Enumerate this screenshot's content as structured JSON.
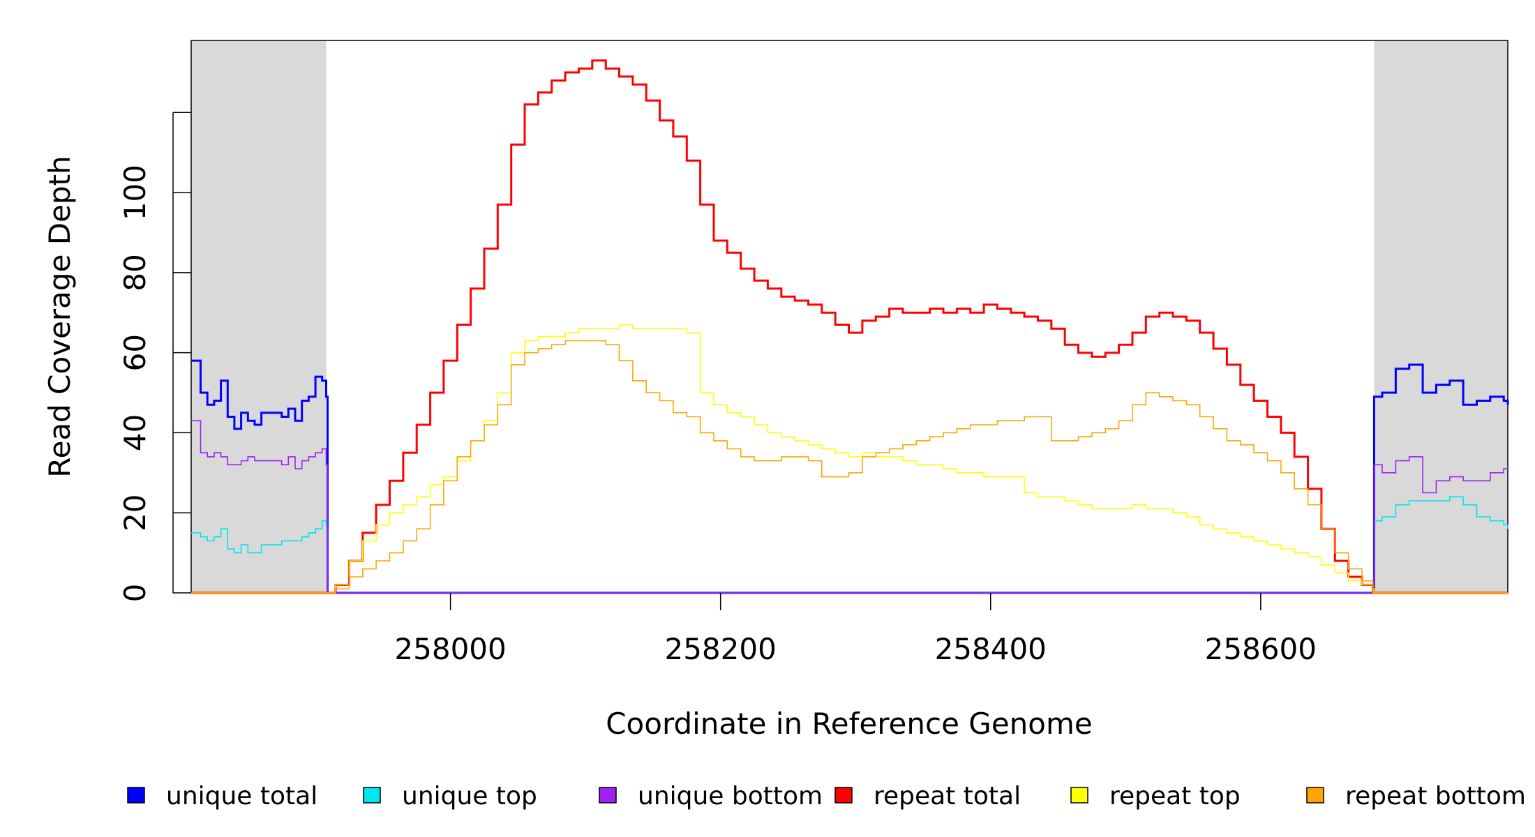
{
  "chart_data": {
    "type": "line",
    "title": "",
    "xlabel": "Coordinate in Reference Genome",
    "ylabel": "Read Coverage Depth",
    "xlim": [
      257808,
      258783
    ],
    "ylim": [
      0,
      138
    ],
    "xticks": [
      258000,
      258200,
      258400,
      258600
    ],
    "yticks": [
      0,
      20,
      40,
      60,
      80,
      100
    ],
    "grid": false,
    "legend_position": "bottom",
    "shaded_regions": [
      {
        "x": [
          257808,
          257908
        ],
        "color": "#d9d9d9"
      },
      {
        "x": [
          258684,
          258783
        ],
        "color": "#d9d9d9"
      }
    ],
    "series": [
      {
        "name": "unique total",
        "color": "#0000ff",
        "x": [
          257808,
          257815,
          257820,
          257825,
          257830,
          257835,
          257840,
          257845,
          257850,
          257855,
          257860,
          257865,
          257870,
          257875,
          257880,
          257885,
          257890,
          257895,
          257900,
          257905,
          257908,
          257909,
          258683,
          258684,
          258690,
          258700,
          258710,
          258720,
          258730,
          258740,
          258750,
          258760,
          258770,
          258780,
          258783
        ],
        "y": [
          58,
          50,
          47,
          48,
          53,
          44,
          41,
          45,
          43,
          42,
          45,
          45,
          45,
          44,
          46,
          43,
          48,
          49,
          54,
          53,
          49,
          0,
          0,
          49,
          50,
          56,
          57,
          50,
          52,
          53,
          47,
          48,
          49,
          48,
          47
        ]
      },
      {
        "name": "unique top",
        "color": "#00e5ee",
        "x": [
          257808,
          257815,
          257820,
          257825,
          257830,
          257835,
          257840,
          257845,
          257850,
          257855,
          257860,
          257865,
          257870,
          257875,
          257880,
          257885,
          257890,
          257895,
          257900,
          257905,
          257908,
          257909,
          258683,
          258684,
          258690,
          258700,
          258710,
          258720,
          258730,
          258740,
          258750,
          258760,
          258770,
          258780,
          258783
        ],
        "y": [
          15,
          14,
          13,
          14,
          16,
          11,
          10,
          12,
          10,
          10,
          12,
          12,
          12,
          13,
          13,
          13,
          14,
          15,
          16,
          18,
          17,
          0,
          0,
          18,
          19,
          22,
          23,
          23,
          23,
          24,
          22,
          19,
          18,
          17,
          16
        ]
      },
      {
        "name": "unique bottom",
        "color": "#a020f0",
        "x": [
          257808,
          257815,
          257820,
          257825,
          257830,
          257835,
          257840,
          257845,
          257850,
          257855,
          257860,
          257865,
          257870,
          257875,
          257880,
          257885,
          257890,
          257895,
          257900,
          257905,
          257908,
          257909,
          258683,
          258684,
          258690,
          258700,
          258710,
          258720,
          258730,
          258740,
          258750,
          258760,
          258770,
          258780,
          258783
        ],
        "y": [
          43,
          35,
          34,
          35,
          34,
          32,
          32,
          33,
          34,
          33,
          33,
          33,
          33,
          32,
          34,
          31,
          33,
          34,
          35,
          36,
          32,
          0,
          0,
          32,
          30,
          33,
          34,
          25,
          28,
          29,
          28,
          28,
          30,
          31,
          31
        ]
      },
      {
        "name": "repeat total",
        "color": "#ff0000",
        "x": [
          257808,
          257908,
          257915,
          257925,
          257935,
          257945,
          257955,
          257965,
          257975,
          257985,
          257995,
          258005,
          258015,
          258025,
          258035,
          258045,
          258055,
          258065,
          258075,
          258085,
          258095,
          258105,
          258115,
          258125,
          258135,
          258145,
          258155,
          258165,
          258175,
          258185,
          258195,
          258205,
          258215,
          258225,
          258235,
          258245,
          258255,
          258265,
          258275,
          258285,
          258295,
          258305,
          258315,
          258325,
          258335,
          258345,
          258355,
          258365,
          258375,
          258385,
          258395,
          258405,
          258415,
          258425,
          258435,
          258445,
          258455,
          258465,
          258475,
          258485,
          258495,
          258505,
          258515,
          258525,
          258535,
          258545,
          258555,
          258565,
          258575,
          258585,
          258595,
          258605,
          258615,
          258625,
          258635,
          258645,
          258655,
          258665,
          258675,
          258683,
          258684,
          258783
        ],
        "y": [
          0,
          0,
          2,
          8,
          15,
          22,
          28,
          35,
          42,
          50,
          58,
          67,
          76,
          86,
          97,
          112,
          122,
          125,
          128,
          130,
          131,
          133,
          131,
          129,
          127,
          123,
          118,
          114,
          108,
          97,
          88,
          85,
          81,
          78,
          76,
          74,
          73,
          72,
          70,
          67,
          65,
          68,
          69,
          71,
          70,
          70,
          71,
          70,
          71,
          70,
          72,
          71,
          70,
          69,
          68,
          66,
          62,
          60,
          59,
          60,
          62,
          65,
          69,
          70,
          69,
          68,
          65,
          61,
          57,
          52,
          48,
          44,
          40,
          34,
          26,
          16,
          8,
          4,
          2,
          0,
          0,
          0
        ]
      },
      {
        "name": "repeat top",
        "color": "#ffff00",
        "x": [
          257808,
          257908,
          257915,
          257925,
          257935,
          257945,
          257955,
          257965,
          257975,
          257985,
          257995,
          258005,
          258015,
          258025,
          258035,
          258045,
          258055,
          258065,
          258075,
          258085,
          258095,
          258105,
          258115,
          258125,
          258135,
          258145,
          258155,
          258165,
          258175,
          258185,
          258195,
          258205,
          258215,
          258225,
          258235,
          258245,
          258255,
          258265,
          258275,
          258285,
          258295,
          258305,
          258315,
          258325,
          258335,
          258345,
          258355,
          258365,
          258375,
          258385,
          258395,
          258405,
          258415,
          258425,
          258435,
          258445,
          258455,
          258465,
          258475,
          258485,
          258495,
          258505,
          258515,
          258525,
          258535,
          258545,
          258555,
          258565,
          258575,
          258585,
          258595,
          258605,
          258615,
          258625,
          258635,
          258645,
          258655,
          258665,
          258675,
          258683,
          258684,
          258783
        ],
        "y": [
          0,
          0,
          2,
          8,
          13,
          17,
          20,
          22,
          24,
          27,
          29,
          33,
          38,
          43,
          50,
          60,
          63,
          64,
          64,
          65,
          66,
          66,
          66,
          67,
          66,
          66,
          66,
          66,
          65,
          50,
          47,
          45,
          44,
          42,
          40,
          39,
          38,
          37,
          36,
          35,
          34,
          35,
          34,
          34,
          33,
          32,
          32,
          31,
          30,
          30,
          29,
          29,
          29,
          25,
          24,
          24,
          23,
          22,
          21,
          21,
          21,
          22,
          21,
          21,
          20,
          19,
          17,
          16,
          15,
          14,
          13,
          12,
          11,
          10,
          9,
          7,
          5,
          3,
          2,
          1,
          0,
          0
        ]
      },
      {
        "name": "repeat bottom",
        "color": "#ffa500",
        "x": [
          257808,
          257908,
          257915,
          257925,
          257935,
          257945,
          257955,
          257965,
          257975,
          257985,
          257995,
          258005,
          258015,
          258025,
          258035,
          258045,
          258055,
          258065,
          258075,
          258085,
          258095,
          258105,
          258115,
          258125,
          258135,
          258145,
          258155,
          258165,
          258175,
          258185,
          258195,
          258205,
          258215,
          258225,
          258235,
          258245,
          258255,
          258265,
          258275,
          258285,
          258295,
          258305,
          258315,
          258325,
          258335,
          258345,
          258355,
          258365,
          258375,
          258385,
          258395,
          258405,
          258415,
          258425,
          258435,
          258445,
          258455,
          258465,
          258475,
          258485,
          258495,
          258505,
          258515,
          258525,
          258535,
          258545,
          258555,
          258565,
          258575,
          258585,
          258595,
          258605,
          258615,
          258625,
          258635,
          258645,
          258655,
          258665,
          258675,
          258683,
          258684,
          258783
        ],
        "y": [
          0,
          0,
          1,
          4,
          6,
          8,
          10,
          13,
          16,
          22,
          28,
          34,
          38,
          42,
          47,
          57,
          60,
          61,
          62,
          63,
          63,
          63,
          62,
          58,
          53,
          50,
          48,
          45,
          44,
          40,
          38,
          36,
          34,
          33,
          33,
          34,
          34,
          33,
          29,
          29,
          30,
          34,
          35,
          36,
          37,
          38,
          39,
          40,
          41,
          42,
          42,
          43,
          43,
          44,
          44,
          38,
          38,
          39,
          40,
          41,
          43,
          47,
          50,
          49,
          48,
          47,
          44,
          41,
          38,
          37,
          35,
          33,
          30,
          26,
          22,
          16,
          10,
          6,
          3,
          0,
          0,
          0
        ]
      }
    ]
  },
  "legend": [
    {
      "label": "unique total",
      "color": "#0000ff"
    },
    {
      "label": "unique top",
      "color": "#00e5ee"
    },
    {
      "label": "unique bottom",
      "color": "#a020f0"
    },
    {
      "label": "repeat total",
      "color": "#ff0000"
    },
    {
      "label": "repeat top",
      "color": "#ffff00"
    },
    {
      "label": "repeat bottom",
      "color": "#ffa500"
    }
  ]
}
